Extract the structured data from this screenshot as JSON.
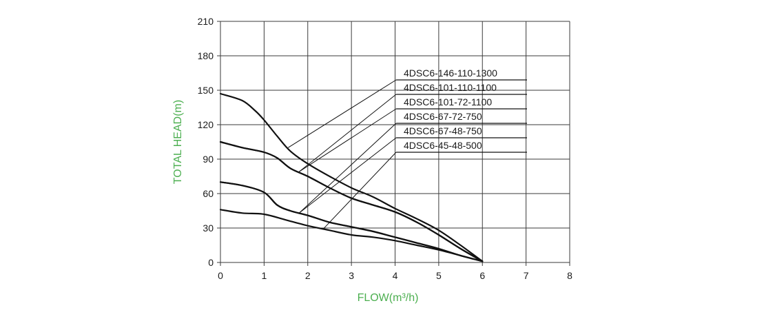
{
  "chart_data": {
    "type": "line",
    "title": "",
    "xlabel": "FLOW(m³/h)",
    "ylabel": "TOTAL HEAD(m)",
    "xlim": [
      0,
      8
    ],
    "ylim": [
      0,
      210
    ],
    "x_ticks": [
      0,
      1,
      2,
      3,
      4,
      5,
      6,
      7,
      8
    ],
    "y_ticks": [
      0,
      30,
      60,
      90,
      120,
      150,
      180,
      210
    ],
    "grid": true,
    "legend_placement": "upper-right, with leader lines to curves",
    "axis_title_color": "#4caf50",
    "line_color": "#111111",
    "series": [
      {
        "name": "4DSC6-146-110-1300",
        "points": [
          [
            0,
            147
          ],
          [
            0.5,
            141
          ],
          [
            0.8,
            132
          ],
          [
            1.0,
            124
          ],
          [
            1.3,
            110
          ],
          [
            1.6,
            97
          ],
          [
            2.0,
            86
          ],
          [
            2.5,
            75
          ],
          [
            3.0,
            65
          ],
          [
            3.5,
            57
          ],
          [
            4.0,
            47
          ],
          [
            4.5,
            38
          ],
          [
            5.0,
            28
          ],
          [
            5.5,
            15
          ],
          [
            6.0,
            1
          ]
        ]
      },
      {
        "name": "4DSC6-101-110-1100",
        "points": [
          [
            0,
            105
          ],
          [
            0.5,
            100
          ],
          [
            1.0,
            96
          ],
          [
            1.3,
            91
          ],
          [
            1.6,
            82
          ],
          [
            2.0,
            75
          ],
          [
            2.5,
            65
          ],
          [
            3.0,
            56
          ],
          [
            3.5,
            50
          ],
          [
            4.0,
            44
          ],
          [
            4.5,
            35
          ],
          [
            5.0,
            24
          ],
          [
            5.5,
            12
          ],
          [
            6.0,
            1
          ]
        ]
      },
      {
        "name": "4DSC6-101-72-1100",
        "points": [
          [
            0,
            105
          ],
          [
            0.5,
            100
          ],
          [
            1.0,
            96
          ],
          [
            1.3,
            91
          ],
          [
            1.6,
            82
          ],
          [
            2.0,
            75
          ],
          [
            2.5,
            65
          ],
          [
            3.0,
            56
          ],
          [
            3.5,
            50
          ],
          [
            4.0,
            44
          ],
          [
            4.5,
            35
          ],
          [
            5.0,
            24
          ],
          [
            5.5,
            12
          ],
          [
            6.0,
            1
          ]
        ]
      },
      {
        "name": "4DSC6-67-72-750",
        "points": [
          [
            0,
            70
          ],
          [
            0.5,
            67
          ],
          [
            1.0,
            61
          ],
          [
            1.3,
            50
          ],
          [
            1.6,
            45
          ],
          [
            2.0,
            41
          ],
          [
            2.5,
            35
          ],
          [
            3.0,
            31
          ],
          [
            3.5,
            27
          ],
          [
            4.0,
            22
          ],
          [
            4.5,
            17
          ],
          [
            5.0,
            12
          ],
          [
            5.5,
            6
          ],
          [
            6.0,
            1
          ]
        ]
      },
      {
        "name": "4DSC6-67-48-750",
        "points": [
          [
            0,
            70
          ],
          [
            0.5,
            67
          ],
          [
            1.0,
            61
          ],
          [
            1.3,
            50
          ],
          [
            1.6,
            45
          ],
          [
            2.0,
            41
          ],
          [
            2.5,
            35
          ],
          [
            3.0,
            31
          ],
          [
            3.5,
            27
          ],
          [
            4.0,
            22
          ],
          [
            4.5,
            17
          ],
          [
            5.0,
            12
          ],
          [
            5.5,
            6
          ],
          [
            6.0,
            1
          ]
        ]
      },
      {
        "name": "4DSC6-45-48-500",
        "points": [
          [
            0,
            46
          ],
          [
            0.5,
            43
          ],
          [
            1.0,
            42
          ],
          [
            1.5,
            37
          ],
          [
            2.0,
            32
          ],
          [
            2.5,
            28
          ],
          [
            3.0,
            24
          ],
          [
            3.5,
            22
          ],
          [
            4.0,
            19
          ],
          [
            4.5,
            15
          ],
          [
            5.0,
            11
          ],
          [
            5.5,
            6
          ],
          [
            6.0,
            1
          ]
        ]
      }
    ],
    "legend_leaders": [
      {
        "label": "4DSC6-146-110-1300",
        "target": [
          1.55,
          100
        ]
      },
      {
        "label": "4DSC6-101-110-1100",
        "target": [
          1.8,
          79
        ]
      },
      {
        "label": "4DSC6-101-72-1100",
        "target": [
          1.8,
          79
        ]
      },
      {
        "label": "4DSC6-67-72-750",
        "target": [
          1.8,
          43
        ]
      },
      {
        "label": "4DSC6-67-48-750",
        "target": [
          1.8,
          43
        ]
      },
      {
        "label": "4DSC6-45-48-500",
        "target": [
          2.35,
          29
        ]
      }
    ]
  }
}
